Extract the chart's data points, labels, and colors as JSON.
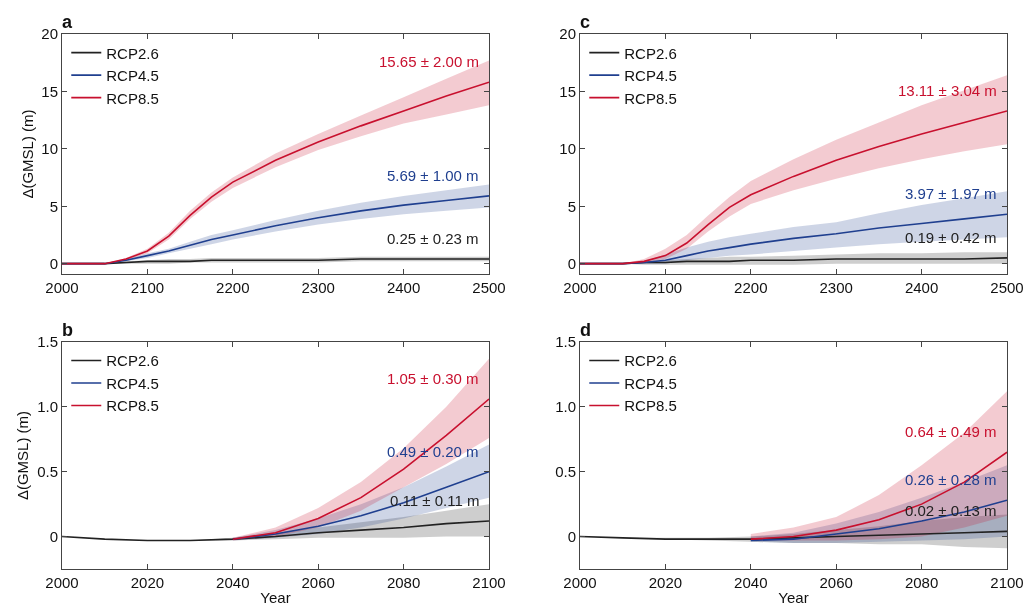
{
  "chart_data": [
    {
      "type": "line",
      "title": "a",
      "ylabel": "Δ(GMSL) (m)",
      "x": [
        2000,
        2050,
        2075,
        2100,
        2125,
        2150,
        2175,
        2200,
        2250,
        2300,
        2350,
        2400,
        2450,
        2500
      ],
      "xlim": [
        2000,
        2500
      ],
      "xticks": [
        2000,
        2100,
        2200,
        2300,
        2400,
        2500
      ],
      "ylim": [
        -0.9,
        20
      ],
      "yticks": [
        0,
        5,
        10,
        15,
        20
      ],
      "grid": false,
      "legend": "top left",
      "line_style": "solid",
      "marker": "none",
      "series": [
        {
          "name": "RCP2.6",
          "color": "#222222",
          "values": [
            0,
            0,
            0.1,
            0.2,
            0.2,
            0.2,
            0.3,
            0.3,
            0.3,
            0.3,
            0.4,
            0.4,
            0.4,
            0.4
          ],
          "lower": [
            0,
            0,
            0,
            0,
            0,
            0.1,
            0.1,
            0.1,
            0.1,
            0.1,
            0.2,
            0.2,
            0.2,
            0.2
          ],
          "upper": [
            0,
            0,
            0.2,
            0.3,
            0.4,
            0.4,
            0.5,
            0.5,
            0.5,
            0.5,
            0.6,
            0.6,
            0.6,
            0.6
          ]
        },
        {
          "name": "RCP4.5",
          "color": "#1f3f8f",
          "values": [
            0,
            0,
            0.3,
            0.7,
            1.1,
            1.6,
            2.1,
            2.5,
            3.3,
            4.0,
            4.6,
            5.1,
            5.5,
            5.9
          ],
          "lower": [
            0,
            0,
            0.2,
            0.5,
            0.9,
            1.3,
            1.7,
            2.1,
            2.8,
            3.4,
            3.9,
            4.3,
            4.6,
            4.9
          ],
          "upper": [
            0,
            0,
            0.4,
            0.9,
            1.3,
            1.9,
            2.5,
            2.9,
            3.8,
            4.6,
            5.3,
            5.9,
            6.4,
            6.9
          ]
        },
        {
          "name": "RCP8.5",
          "color": "#c8102e",
          "values": [
            0,
            0,
            0.4,
            1.1,
            2.4,
            4.2,
            5.8,
            7.1,
            9.0,
            10.6,
            12.0,
            13.3,
            14.6,
            15.8
          ],
          "lower": [
            0,
            0,
            0.3,
            0.9,
            2.1,
            3.9,
            5.4,
            6.6,
            8.4,
            9.9,
            11.1,
            12.2,
            13.0,
            13.8
          ],
          "upper": [
            0,
            0,
            0.5,
            1.3,
            2.7,
            4.6,
            6.2,
            7.5,
            9.6,
            11.3,
            12.9,
            14.5,
            16.1,
            17.7
          ]
        }
      ],
      "annotations": [
        "0.25 ± 0.23 m",
        "5.69 ± 1.00 m",
        "15.65 ± 2.00 m"
      ]
    },
    {
      "type": "line",
      "title": "c",
      "x": [
        2000,
        2050,
        2075,
        2100,
        2125,
        2150,
        2175,
        2200,
        2250,
        2300,
        2350,
        2400,
        2450,
        2500
      ],
      "xlim": [
        2000,
        2500
      ],
      "xticks": [
        2000,
        2100,
        2200,
        2300,
        2400,
        2500
      ],
      "ylim": [
        -0.9,
        20
      ],
      "yticks": [
        0,
        5,
        10,
        15,
        20
      ],
      "grid": false,
      "legend": "top left",
      "line_style": "solid",
      "marker": "none",
      "series": [
        {
          "name": "RCP2.6",
          "color": "#222222",
          "values": [
            0,
            0,
            0.1,
            0.1,
            0.2,
            0.2,
            0.2,
            0.3,
            0.3,
            0.4,
            0.4,
            0.4,
            0.4,
            0.5
          ],
          "lower": [
            0,
            0,
            -0.1,
            -0.1,
            -0.1,
            -0.1,
            -0.1,
            -0.1,
            -0.1,
            0,
            0,
            0,
            0,
            0
          ],
          "upper": [
            0,
            0,
            0.2,
            0.3,
            0.4,
            0.5,
            0.6,
            0.6,
            0.7,
            0.8,
            0.9,
            0.9,
            1.0,
            1.0
          ]
        },
        {
          "name": "RCP4.5",
          "color": "#1f3f8f",
          "values": [
            0,
            0,
            0.1,
            0.3,
            0.7,
            1.1,
            1.4,
            1.7,
            2.2,
            2.6,
            3.1,
            3.5,
            3.9,
            4.3
          ],
          "lower": [
            0,
            0,
            0,
            0,
            0.3,
            0.5,
            0.7,
            0.8,
            1.1,
            1.4,
            1.7,
            1.9,
            2.1,
            2.3
          ],
          "upper": [
            0,
            0,
            0.2,
            0.8,
            1.4,
            1.9,
            2.3,
            2.6,
            3.2,
            3.6,
            4.4,
            5.1,
            5.7,
            6.3
          ]
        },
        {
          "name": "RCP8.5",
          "color": "#c8102e",
          "values": [
            0,
            0,
            0.2,
            0.7,
            1.8,
            3.4,
            4.9,
            6.0,
            7.6,
            9.0,
            10.2,
            11.3,
            12.3,
            13.3
          ],
          "lower": [
            0,
            0,
            0.1,
            0.4,
            1.3,
            2.8,
            4.1,
            5.2,
            6.4,
            7.4,
            8.3,
            9.1,
            9.8,
            10.4
          ],
          "upper": [
            0,
            0,
            0.4,
            1.3,
            2.5,
            4.2,
            5.8,
            7.2,
            9.1,
            10.8,
            12.3,
            13.8,
            15.1,
            16.4
          ]
        }
      ],
      "annotations": [
        "0.19 ± 0.42 m",
        "3.97 ± 1.97 m",
        "13.11 ± 3.04 m"
      ]
    },
    {
      "type": "line",
      "title": "b",
      "xlabel": "Year",
      "ylabel": "Δ(GMSL) (m)",
      "x": [
        2000,
        2010,
        2020,
        2030,
        2040,
        2050,
        2060,
        2070,
        2080,
        2090,
        2100
      ],
      "xlim": [
        2000,
        2100
      ],
      "xticks": [
        2000,
        2020,
        2040,
        2060,
        2080,
        2100
      ],
      "ylim": [
        -0.25,
        1.5
      ],
      "yticks": [
        0,
        0.5,
        {
          "value": 1,
          "label": "1.0"
        },
        1.5
      ],
      "grid": false,
      "legend": "top left",
      "line_style": "solid",
      "marker": "none",
      "series": [
        {
          "name": "RCP2.6",
          "color": "#222222",
          "values": [
            0,
            -0.02,
            -0.03,
            -0.03,
            -0.02,
            0,
            0.03,
            0.05,
            0.07,
            0.1,
            0.12
          ],
          "lower": [
            0,
            -0.02,
            -0.03,
            -0.03,
            -0.03,
            -0.02,
            -0.01,
            -0.01,
            -0.01,
            0,
            0
          ],
          "upper": [
            0,
            -0.02,
            -0.03,
            -0.03,
            -0.01,
            0.03,
            0.07,
            0.11,
            0.15,
            0.2,
            0.25
          ]
        },
        {
          "name": "RCP4.5",
          "color": "#1f3f8f",
          "values": [
            null,
            null,
            null,
            null,
            -0.02,
            0.02,
            0.08,
            0.16,
            0.26,
            0.38,
            0.5
          ],
          "lower": [
            null,
            null,
            null,
            null,
            -0.03,
            -0.01,
            0.02,
            0.07,
            0.14,
            0.22,
            0.3
          ],
          "upper": [
            null,
            null,
            null,
            null,
            -0.01,
            0.05,
            0.14,
            0.25,
            0.38,
            0.54,
            0.71
          ]
        },
        {
          "name": "RCP8.5",
          "color": "#c8102e",
          "values": [
            null,
            null,
            null,
            null,
            -0.02,
            0.03,
            0.14,
            0.3,
            0.52,
            0.78,
            1.06
          ],
          "lower": [
            null,
            null,
            null,
            null,
            -0.03,
            0,
            0.07,
            0.2,
            0.38,
            0.56,
            0.76
          ],
          "upper": [
            null,
            null,
            null,
            null,
            -0.01,
            0.07,
            0.22,
            0.42,
            0.68,
            1.0,
            1.37
          ]
        }
      ],
      "annotations": [
        "0.11 ± 0.11 m",
        "0.49 ± 0.20 m",
        "1.05 ± 0.30 m"
      ]
    },
    {
      "type": "line",
      "title": "d",
      "xlabel": "Year",
      "x": [
        2000,
        2010,
        2020,
        2030,
        2040,
        2050,
        2060,
        2070,
        2080,
        2090,
        2100
      ],
      "xlim": [
        2000,
        2100
      ],
      "xticks": [
        2000,
        2020,
        2040,
        2060,
        2080,
        2100
      ],
      "ylim": [
        -0.25,
        1.5
      ],
      "yticks": [
        0,
        0.5,
        {
          "value": 1,
          "label": "1.0"
        },
        1.5
      ],
      "grid": false,
      "legend": "top left",
      "line_style": "solid",
      "marker": "none",
      "series": [
        {
          "name": "RCP2.6",
          "color": "#222222",
          "values": [
            0,
            -0.01,
            -0.02,
            -0.02,
            -0.02,
            -0.01,
            0,
            0.01,
            0.02,
            0.03,
            0.04
          ],
          "lower": [
            0,
            -0.01,
            -0.02,
            -0.03,
            -0.04,
            -0.05,
            -0.05,
            -0.06,
            -0.06,
            -0.08,
            -0.09
          ],
          "upper": [
            0,
            -0.01,
            -0.01,
            -0.01,
            0,
            0.02,
            0.05,
            0.08,
            0.12,
            0.15,
            0.17
          ]
        },
        {
          "name": "RCP4.5",
          "color": "#1f3f8f",
          "values": [
            null,
            null,
            null,
            null,
            -0.03,
            -0.02,
            0.02,
            0.06,
            0.12,
            0.19,
            0.28
          ],
          "lower": [
            null,
            null,
            null,
            null,
            -0.04,
            -0.05,
            -0.05,
            -0.04,
            -0.03,
            -0.02,
            0
          ],
          "upper": [
            null,
            null,
            null,
            null,
            0,
            0.03,
            0.1,
            0.19,
            0.3,
            0.42,
            0.55
          ]
        },
        {
          "name": "RCP8.5",
          "color": "#c8102e",
          "values": [
            null,
            null,
            null,
            null,
            -0.02,
            0,
            0.05,
            0.13,
            0.25,
            0.42,
            0.65
          ],
          "lower": [
            null,
            null,
            null,
            null,
            -0.03,
            -0.03,
            -0.03,
            -0.02,
            0,
            0.07,
            0.16
          ],
          "upper": [
            null,
            null,
            null,
            null,
            0.02,
            0.07,
            0.15,
            0.32,
            0.55,
            0.8,
            1.12
          ]
        }
      ],
      "annotations": [
        "0.02 ± 0.13 m",
        "0.26 ± 0.28 m",
        "0.64 ± 0.49 m"
      ]
    }
  ]
}
